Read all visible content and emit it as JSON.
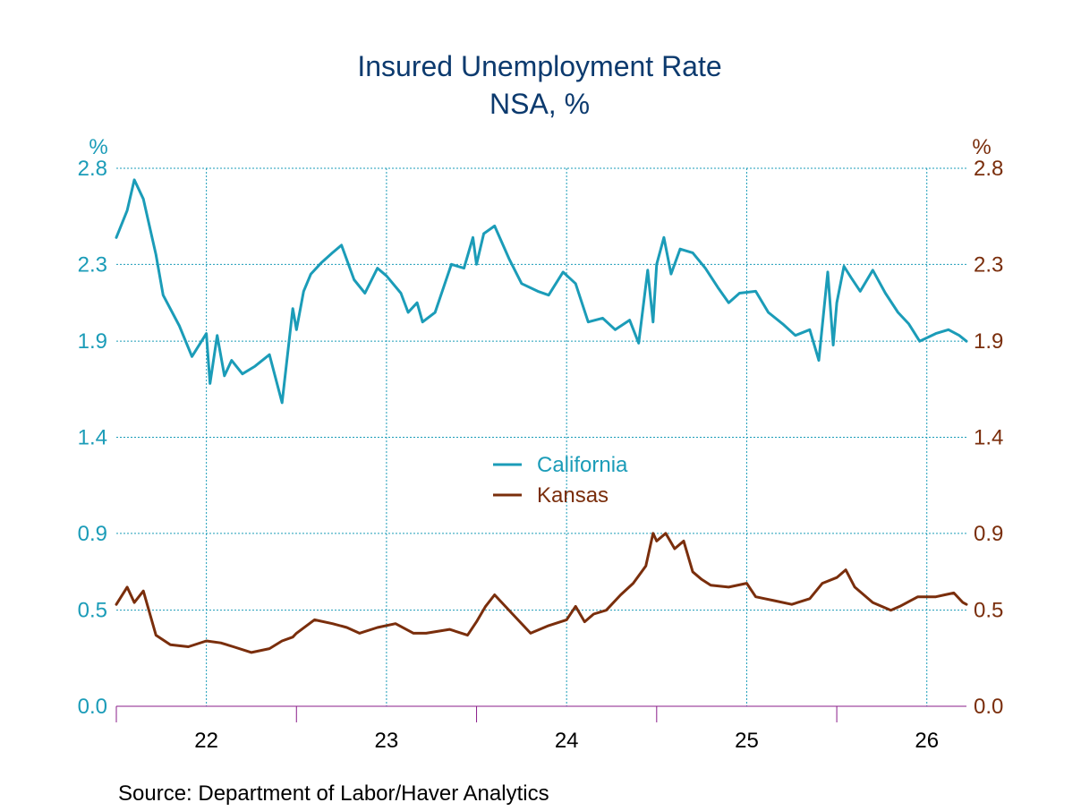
{
  "chart_data": {
    "type": "line",
    "title": "Insured Unemployment Rate",
    "subtitle": "NSA, %",
    "source": "Source:  Department of Labor/Haver Analytics",
    "y_unit_left": "%",
    "y_unit_right": "%",
    "ylim": [
      0.0,
      2.8
    ],
    "y_ticks": [
      "0.0",
      "0.5",
      "0.9",
      "1.4",
      "1.9",
      "2.3",
      "2.8"
    ],
    "x_ticks": [
      "22",
      "23",
      "24",
      "25",
      "26"
    ],
    "xlim": [
      2021.5,
      2026.22
    ],
    "grid": true,
    "legend_position": "center",
    "colors": {
      "california": "#1b9cb8",
      "kansas": "#7a2e0c",
      "grid": "#1b9cb8",
      "axis": "#8a1c8a"
    },
    "series": [
      {
        "name": "California",
        "color": "#1b9cb8",
        "x": [
          2021.5,
          2021.56,
          2021.6,
          2021.65,
          2021.72,
          2021.76,
          2021.85,
          2021.92,
          2022.0,
          2022.02,
          2022.06,
          2022.1,
          2022.14,
          2022.2,
          2022.27,
          2022.35,
          2022.42,
          2022.48,
          2022.5,
          2022.54,
          2022.58,
          2022.64,
          2022.7,
          2022.75,
          2022.82,
          2022.88,
          2022.95,
          2023.0,
          2023.08,
          2023.12,
          2023.17,
          2023.2,
          2023.27,
          2023.36,
          2023.43,
          2023.48,
          2023.5,
          2023.54,
          2023.6,
          2023.68,
          2023.75,
          2023.84,
          2023.9,
          2023.98,
          2024.05,
          2024.12,
          2024.2,
          2024.27,
          2024.35,
          2024.4,
          2024.45,
          2024.48,
          2024.5,
          2024.54,
          2024.58,
          2024.63,
          2024.7,
          2024.77,
          2024.84,
          2024.9,
          2024.96,
          2025.05,
          2025.12,
          2025.2,
          2025.27,
          2025.35,
          2025.4,
          2025.45,
          2025.48,
          2025.5,
          2025.54,
          2025.58,
          2025.63,
          2025.7,
          2025.77,
          2025.84,
          2025.9,
          2025.96,
          2026.05,
          2026.12,
          2026.18,
          2026.22
        ],
        "values": [
          2.44,
          2.58,
          2.74,
          2.64,
          2.35,
          2.14,
          1.98,
          1.82,
          1.94,
          1.68,
          1.93,
          1.72,
          1.8,
          1.73,
          1.77,
          1.83,
          1.58,
          2.07,
          1.96,
          2.16,
          2.25,
          2.31,
          2.36,
          2.4,
          2.22,
          2.15,
          2.28,
          2.24,
          2.15,
          2.05,
          2.1,
          2.0,
          2.05,
          2.3,
          2.28,
          2.44,
          2.3,
          2.46,
          2.5,
          2.33,
          2.2,
          2.16,
          2.14,
          2.26,
          2.2,
          2.0,
          2.02,
          1.96,
          2.01,
          1.89,
          2.27,
          2.0,
          2.3,
          2.44,
          2.25,
          2.38,
          2.36,
          2.28,
          2.18,
          2.1,
          2.15,
          2.16,
          2.05,
          1.99,
          1.93,
          1.96,
          1.8,
          2.26,
          1.88,
          2.1,
          2.29,
          2.23,
          2.16,
          2.27,
          2.15,
          2.05,
          1.99,
          1.9,
          1.94,
          1.96,
          1.93,
          1.9
        ]
      },
      {
        "name": "Kansas",
        "color": "#7a2e0c",
        "x": [
          2021.5,
          2021.56,
          2021.6,
          2021.65,
          2021.72,
          2021.8,
          2021.9,
          2022.0,
          2022.08,
          2022.15,
          2022.25,
          2022.35,
          2022.42,
          2022.48,
          2022.5,
          2022.6,
          2022.7,
          2022.78,
          2022.85,
          2022.95,
          2023.05,
          2023.15,
          2023.22,
          2023.35,
          2023.45,
          2023.5,
          2023.55,
          2023.6,
          2023.7,
          2023.8,
          2023.9,
          2024.0,
          2024.05,
          2024.1,
          2024.15,
          2024.22,
          2024.3,
          2024.37,
          2024.44,
          2024.48,
          2024.5,
          2024.55,
          2024.6,
          2024.65,
          2024.7,
          2024.75,
          2024.8,
          2024.9,
          2025.0,
          2025.05,
          2025.1,
          2025.15,
          2025.25,
          2025.35,
          2025.42,
          2025.5,
          2025.55,
          2025.6,
          2025.7,
          2025.8,
          2025.85,
          2025.95,
          2026.05,
          2026.1,
          2026.15,
          2026.2,
          2026.22
        ],
        "values": [
          0.53,
          0.62,
          0.54,
          0.6,
          0.37,
          0.32,
          0.31,
          0.34,
          0.33,
          0.31,
          0.28,
          0.3,
          0.34,
          0.36,
          0.38,
          0.45,
          0.43,
          0.41,
          0.38,
          0.41,
          0.43,
          0.38,
          0.38,
          0.4,
          0.37,
          0.44,
          0.52,
          0.58,
          0.48,
          0.38,
          0.42,
          0.45,
          0.52,
          0.44,
          0.48,
          0.5,
          0.58,
          0.64,
          0.73,
          0.9,
          0.86,
          0.9,
          0.82,
          0.86,
          0.7,
          0.66,
          0.63,
          0.62,
          0.64,
          0.57,
          0.56,
          0.55,
          0.53,
          0.56,
          0.64,
          0.67,
          0.71,
          0.62,
          0.54,
          0.5,
          0.52,
          0.57,
          0.57,
          0.58,
          0.59,
          0.54,
          0.53
        ]
      }
    ]
  }
}
